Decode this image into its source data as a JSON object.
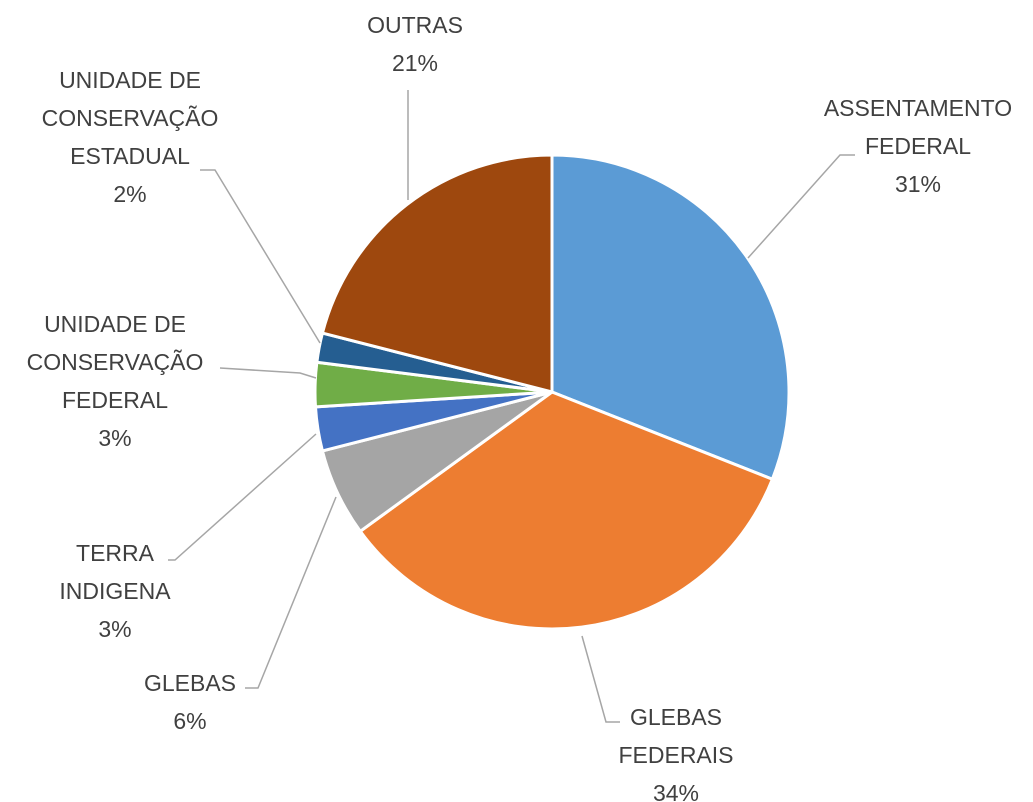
{
  "chart_data": {
    "type": "pie",
    "categories": [
      "ASSENTAMENTO FEDERAL",
      "GLEBAS FEDERAIS",
      "GLEBAS",
      "TERRA INDIGENA",
      "UNIDADE DE CONSERVAÇÃO FEDERAL",
      "UNIDADE DE CONSERVAÇÃO ESTADUAL",
      "OUTRAS"
    ],
    "values": [
      31,
      34,
      6,
      3,
      3,
      2,
      21
    ],
    "value_labels": [
      "31%",
      "34%",
      "6%",
      "3%",
      "3%",
      "2%",
      "21%"
    ],
    "colors": [
      "#5b9bd5",
      "#ed7d31",
      "#a5a5a5",
      "#4472c4",
      "#70ad47",
      "#255e91",
      "#9e480e"
    ]
  }
}
